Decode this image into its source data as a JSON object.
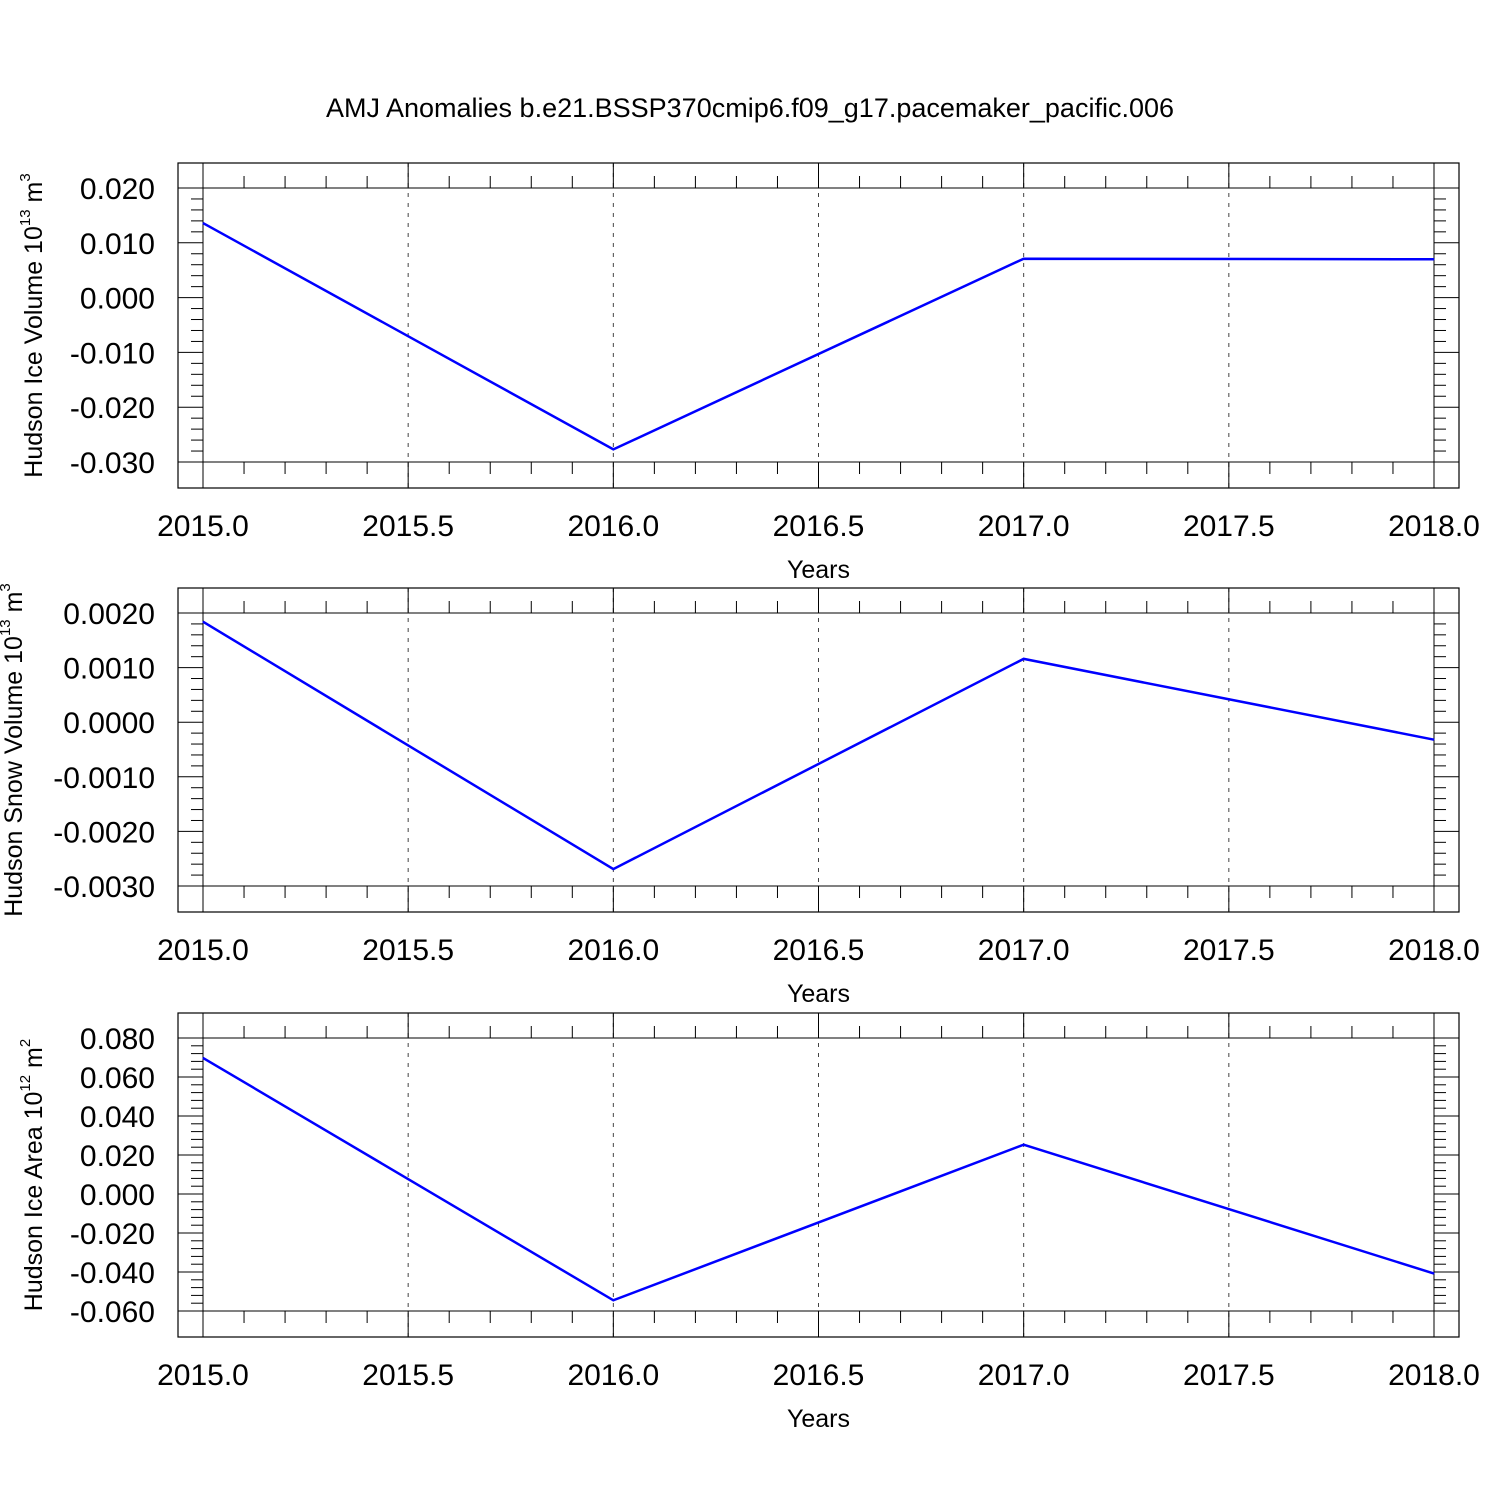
{
  "title": "AMJ Anomalies b.e21.BSSP370cmip6.f09_g17.pacemaker_pacific.006",
  "colors": {
    "series": "#0000ff",
    "axis": "#000000",
    "grid": "#444444"
  },
  "chart_data": [
    {
      "type": "line",
      "title": "",
      "xlabel": "Years",
      "ylabel_text": "Hudson Ice Volume 10",
      "ylabel_exp": "13",
      "ylabel_unit": " m",
      "ylabel_unit_exp": "3",
      "xlim": [
        2015.0,
        2018.0
      ],
      "ylim": [
        -0.03,
        0.02
      ],
      "x_ticks": [
        "2015.0",
        "2015.5",
        "2016.0",
        "2016.5",
        "2017.0",
        "2017.5",
        "2018.0"
      ],
      "x_tick_values": [
        2015.0,
        2015.5,
        2016.0,
        2016.5,
        2017.0,
        2017.5,
        2018.0
      ],
      "y_ticks": [
        "0.020",
        "0.010",
        "0.000",
        "-0.010",
        "-0.020",
        "-0.030"
      ],
      "y_tick_values": [
        0.02,
        0.01,
        0.0,
        -0.01,
        -0.02,
        -0.03
      ],
      "grid": "dashed vertical at major x ticks",
      "series": [
        {
          "x": [
            2015,
            2016,
            2017,
            2018
          ],
          "y": [
            0.0136,
            -0.0277,
            0.0071,
            0.007
          ]
        }
      ]
    },
    {
      "type": "line",
      "title": "",
      "xlabel": "Years",
      "ylabel_text": "Hudson Snow Volume 10",
      "ylabel_exp": "13",
      "ylabel_unit": " m",
      "ylabel_unit_exp": "3",
      "xlim": [
        2015.0,
        2018.0
      ],
      "ylim": [
        -0.003,
        0.002
      ],
      "x_ticks": [
        "2015.0",
        "2015.5",
        "2016.0",
        "2016.5",
        "2017.0",
        "2017.5",
        "2018.0"
      ],
      "x_tick_values": [
        2015.0,
        2015.5,
        2016.0,
        2016.5,
        2017.0,
        2017.5,
        2018.0
      ],
      "y_ticks": [
        "0.0020",
        "0.0010",
        "0.0000",
        "-0.0010",
        "-0.0020",
        "-0.0030"
      ],
      "y_tick_values": [
        0.002,
        0.001,
        0.0,
        -0.001,
        -0.002,
        -0.003
      ],
      "grid": "dashed vertical at major x ticks",
      "series": [
        {
          "x": [
            2015,
            2016,
            2017,
            2018
          ],
          "y": [
            0.00184,
            -0.00269,
            0.00116,
            -0.00032
          ]
        }
      ]
    },
    {
      "type": "line",
      "title": "",
      "xlabel": "Years",
      "ylabel_text": "Hudson Ice Area 10",
      "ylabel_exp": "12",
      "ylabel_unit": " m",
      "ylabel_unit_exp": "2",
      "xlim": [
        2015.0,
        2018.0
      ],
      "ylim": [
        -0.06,
        0.08
      ],
      "x_ticks": [
        "2015.0",
        "2015.5",
        "2016.0",
        "2016.5",
        "2017.0",
        "2017.5",
        "2018.0"
      ],
      "x_tick_values": [
        2015.0,
        2015.5,
        2016.0,
        2016.5,
        2017.0,
        2017.5,
        2018.0
      ],
      "y_ticks": [
        "0.080",
        "0.060",
        "0.040",
        "0.020",
        "0.000",
        "-0.020",
        "-0.040",
        "-0.060"
      ],
      "y_tick_values": [
        0.08,
        0.06,
        0.04,
        0.02,
        0.0,
        -0.02,
        -0.04,
        -0.06
      ],
      "grid": "dashed vertical at major x ticks",
      "series": [
        {
          "x": [
            2015,
            2016,
            2017,
            2018
          ],
          "y": [
            0.0698,
            -0.0545,
            0.0253,
            -0.0408
          ]
        }
      ]
    }
  ]
}
